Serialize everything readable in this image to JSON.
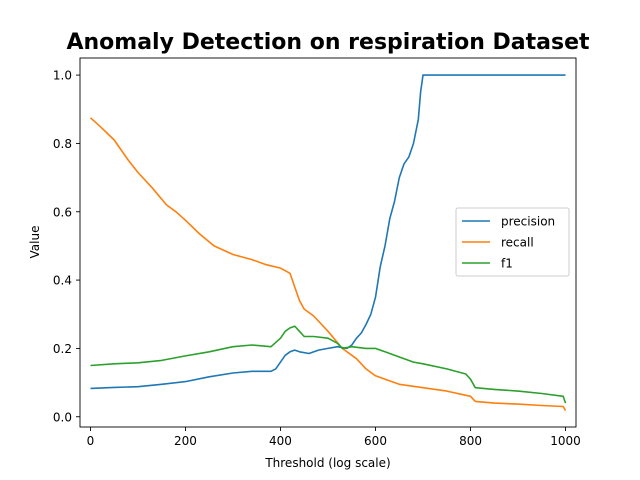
{
  "chart_data": {
    "type": "line",
    "title": "Anomaly Detection on respiration Dataset",
    "xlabel": "Threshold (log scale)",
    "ylabel": "Value",
    "xlim": [
      -22,
      1022
    ],
    "ylim": [
      -0.03,
      1.05
    ],
    "xticks": [
      0,
      200,
      400,
      600,
      800,
      1000
    ],
    "yticks": [
      0.0,
      0.2,
      0.4,
      0.6,
      0.8,
      1.0
    ],
    "xtick_labels": [
      "0",
      "200",
      "400",
      "600",
      "800",
      "1000"
    ],
    "ytick_labels": [
      "0.0",
      "0.2",
      "0.4",
      "0.6",
      "0.8",
      "1.0"
    ],
    "grid": false,
    "legend_position": "center-right",
    "series": [
      {
        "name": "precision",
        "color": "#1f77b4",
        "x": [
          0,
          50,
          100,
          150,
          200,
          250,
          300,
          340,
          380,
          390,
          400,
          410,
          420,
          430,
          440,
          460,
          480,
          500,
          520,
          540,
          550,
          560,
          570,
          580,
          590,
          600,
          610,
          620,
          630,
          640,
          650,
          660,
          670,
          680,
          690,
          695,
          700,
          720,
          800,
          900,
          1000
        ],
        "y": [
          0.083,
          0.086,
          0.088,
          0.095,
          0.103,
          0.117,
          0.128,
          0.133,
          0.133,
          0.14,
          0.16,
          0.18,
          0.19,
          0.195,
          0.19,
          0.185,
          0.195,
          0.2,
          0.205,
          0.2,
          0.21,
          0.23,
          0.245,
          0.27,
          0.3,
          0.35,
          0.44,
          0.5,
          0.58,
          0.63,
          0.7,
          0.74,
          0.76,
          0.8,
          0.87,
          0.95,
          1.0,
          1.0,
          1.0,
          1.0,
          1.0
        ]
      },
      {
        "name": "recall",
        "color": "#ff7f0e",
        "x": [
          0,
          20,
          50,
          80,
          100,
          130,
          160,
          180,
          200,
          230,
          260,
          300,
          340,
          370,
          400,
          420,
          430,
          440,
          450,
          470,
          500,
          530,
          560,
          580,
          600,
          650,
          700,
          750,
          800,
          810,
          850,
          900,
          950,
          995,
          1000
        ],
        "y": [
          0.875,
          0.85,
          0.81,
          0.75,
          0.715,
          0.67,
          0.62,
          0.6,
          0.575,
          0.535,
          0.5,
          0.475,
          0.46,
          0.445,
          0.435,
          0.42,
          0.38,
          0.34,
          0.315,
          0.295,
          0.25,
          0.2,
          0.17,
          0.14,
          0.12,
          0.095,
          0.085,
          0.075,
          0.06,
          0.045,
          0.04,
          0.037,
          0.033,
          0.03,
          0.018
        ]
      },
      {
        "name": "f1",
        "color": "#2ca02c",
        "x": [
          0,
          50,
          100,
          150,
          200,
          250,
          300,
          340,
          380,
          400,
          410,
          420,
          430,
          440,
          450,
          470,
          500,
          520,
          530,
          550,
          580,
          600,
          620,
          650,
          680,
          700,
          750,
          790,
          800,
          810,
          850,
          900,
          950,
          995,
          1000
        ],
        "y": [
          0.15,
          0.155,
          0.158,
          0.165,
          0.178,
          0.19,
          0.205,
          0.21,
          0.205,
          0.23,
          0.25,
          0.26,
          0.265,
          0.25,
          0.235,
          0.235,
          0.23,
          0.215,
          0.2,
          0.205,
          0.2,
          0.2,
          0.19,
          0.175,
          0.16,
          0.155,
          0.14,
          0.125,
          0.11,
          0.085,
          0.08,
          0.075,
          0.068,
          0.06,
          0.04
        ]
      }
    ]
  }
}
